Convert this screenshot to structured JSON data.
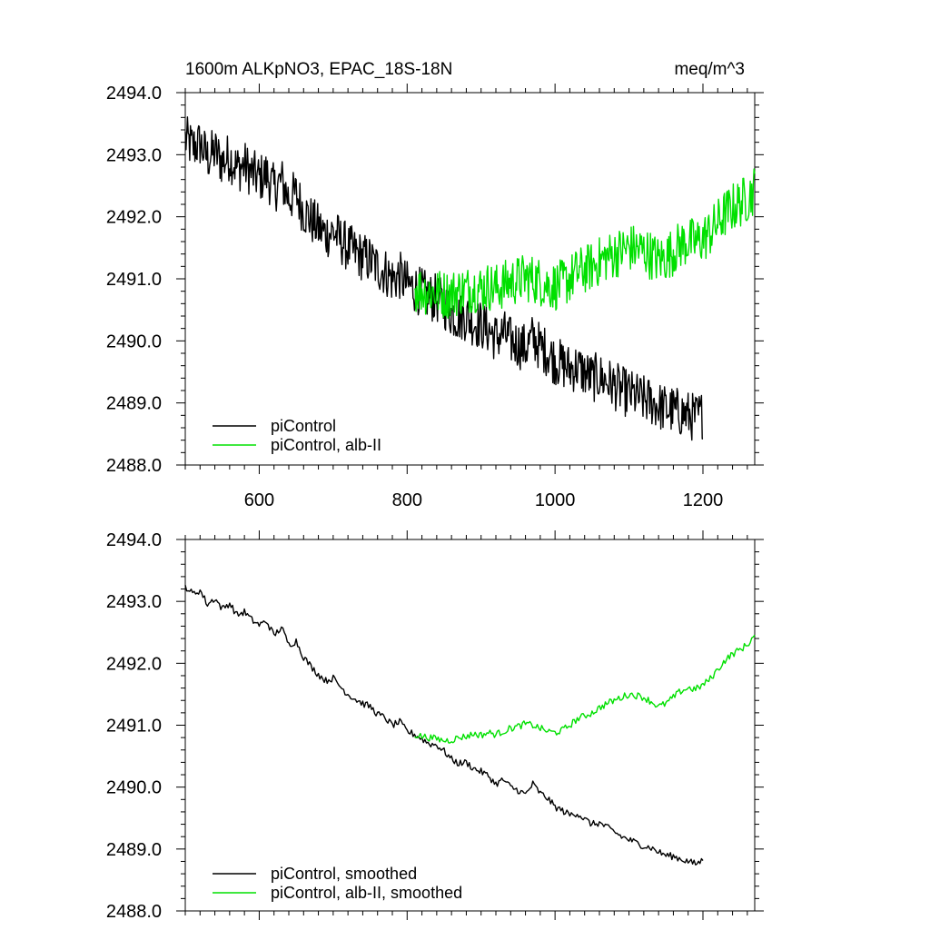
{
  "figure": {
    "title_left": "1600m ALKpNO3, EPAC_18S-18N",
    "title_right": "meq/m^3"
  },
  "chart_data": [
    {
      "type": "line",
      "xlim": [
        500,
        1270
      ],
      "ylim": [
        2488.0,
        2494.0
      ],
      "xticks": [
        600,
        800,
        1000,
        1200
      ],
      "xtick_labels": [
        "600",
        "800",
        "1000",
        "1200"
      ],
      "yticks": [
        2488.0,
        2489.0,
        2490.0,
        2491.0,
        2492.0,
        2493.0,
        2494.0
      ],
      "ytick_labels": [
        "2488.0",
        "2489.0",
        "2490.0",
        "2491.0",
        "2492.0",
        "2493.0",
        "2494.0"
      ],
      "legend_position": "bottom-left",
      "series": [
        {
          "name": "piControl",
          "color": "#000000",
          "x": [
            500,
            510,
            520,
            530,
            540,
            550,
            560,
            570,
            580,
            590,
            600,
            610,
            620,
            630,
            640,
            650,
            660,
            670,
            680,
            690,
            700,
            710,
            720,
            730,
            740,
            750,
            760,
            770,
            780,
            790,
            800,
            810,
            820,
            830,
            840,
            850,
            860,
            870,
            880,
            890,
            900,
            910,
            920,
            930,
            940,
            950,
            960,
            970,
            980,
            990,
            1000,
            1010,
            1020,
            1030,
            1040,
            1050,
            1060,
            1070,
            1080,
            1090,
            1100,
            1110,
            1120,
            1130,
            1140,
            1150,
            1160,
            1170,
            1180,
            1190,
            1200
          ],
          "y": [
            2493.25,
            2493.12,
            2493.18,
            2492.95,
            2493.05,
            2492.88,
            2492.97,
            2492.78,
            2492.83,
            2492.7,
            2492.62,
            2492.68,
            2492.45,
            2492.58,
            2492.3,
            2492.36,
            2492.1,
            2491.95,
            2491.82,
            2491.72,
            2491.76,
            2491.62,
            2491.5,
            2491.42,
            2491.35,
            2491.3,
            2491.18,
            2491.12,
            2491.0,
            2491.05,
            2490.9,
            2490.85,
            2490.78,
            2490.7,
            2490.68,
            2490.58,
            2490.45,
            2490.38,
            2490.4,
            2490.3,
            2490.25,
            2490.18,
            2490.05,
            2490.12,
            2490.0,
            2489.95,
            2489.88,
            2490.05,
            2489.9,
            2489.82,
            2489.68,
            2489.62,
            2489.55,
            2489.58,
            2489.48,
            2489.4,
            2489.42,
            2489.35,
            2489.28,
            2489.2,
            2489.15,
            2489.1,
            2489.05,
            2489.02,
            2488.95,
            2488.9,
            2488.88,
            2488.84,
            2488.8,
            2488.76,
            2488.82
          ],
          "noise_amplitude": 0.4
        },
        {
          "name": "piControl, alb-II",
          "color": "#00e000",
          "x": [
            810,
            820,
            830,
            840,
            850,
            860,
            870,
            880,
            890,
            900,
            910,
            920,
            930,
            940,
            950,
            960,
            970,
            980,
            990,
            1000,
            1010,
            1020,
            1030,
            1040,
            1050,
            1060,
            1070,
            1080,
            1090,
            1100,
            1110,
            1120,
            1130,
            1140,
            1150,
            1160,
            1170,
            1180,
            1190,
            1200,
            1210,
            1220,
            1230,
            1240,
            1250,
            1260,
            1270
          ],
          "y": [
            2490.85,
            2490.82,
            2490.8,
            2490.78,
            2490.75,
            2490.76,
            2490.8,
            2490.82,
            2490.86,
            2490.84,
            2490.88,
            2490.85,
            2490.9,
            2490.95,
            2490.98,
            2491.02,
            2491.0,
            2490.95,
            2490.9,
            2490.88,
            2490.92,
            2491.0,
            2491.1,
            2491.15,
            2491.2,
            2491.28,
            2491.35,
            2491.4,
            2491.45,
            2491.5,
            2491.48,
            2491.45,
            2491.38,
            2491.3,
            2491.35,
            2491.45,
            2491.55,
            2491.6,
            2491.58,
            2491.65,
            2491.75,
            2491.9,
            2492.05,
            2492.15,
            2492.22,
            2492.3,
            2492.45
          ],
          "noise_amplitude": 0.4
        }
      ]
    },
    {
      "type": "line",
      "xlim": [
        500,
        1270
      ],
      "ylim": [
        2488.0,
        2494.0
      ],
      "xticks": [
        600,
        800,
        1000,
        1200
      ],
      "yticks": [
        2488.0,
        2489.0,
        2490.0,
        2491.0,
        2492.0,
        2493.0,
        2494.0
      ],
      "ytick_labels": [
        "2488.0",
        "2489.0",
        "2490.0",
        "2491.0",
        "2492.0",
        "2493.0",
        "2494.0"
      ],
      "legend_position": "bottom-left",
      "series": [
        {
          "name": "piControl, smoothed",
          "color": "#000000",
          "x": [
            500,
            510,
            520,
            530,
            540,
            550,
            560,
            570,
            580,
            590,
            600,
            610,
            620,
            630,
            640,
            650,
            660,
            670,
            680,
            690,
            700,
            710,
            720,
            730,
            740,
            750,
            760,
            770,
            780,
            790,
            800,
            810,
            820,
            830,
            840,
            850,
            860,
            870,
            880,
            890,
            900,
            910,
            920,
            930,
            940,
            950,
            960,
            970,
            980,
            990,
            1000,
            1010,
            1020,
            1030,
            1040,
            1050,
            1060,
            1070,
            1080,
            1090,
            1100,
            1110,
            1120,
            1130,
            1140,
            1150,
            1160,
            1170,
            1180,
            1190,
            1200
          ],
          "y": [
            2493.25,
            2493.12,
            2493.18,
            2492.95,
            2493.05,
            2492.88,
            2492.97,
            2492.78,
            2492.83,
            2492.7,
            2492.62,
            2492.68,
            2492.45,
            2492.58,
            2492.3,
            2492.36,
            2492.1,
            2491.95,
            2491.82,
            2491.72,
            2491.76,
            2491.62,
            2491.5,
            2491.42,
            2491.35,
            2491.3,
            2491.18,
            2491.12,
            2491.0,
            2491.05,
            2490.9,
            2490.85,
            2490.78,
            2490.7,
            2490.68,
            2490.58,
            2490.45,
            2490.38,
            2490.4,
            2490.3,
            2490.25,
            2490.18,
            2490.05,
            2490.12,
            2490.0,
            2489.95,
            2489.88,
            2490.05,
            2489.9,
            2489.82,
            2489.68,
            2489.62,
            2489.55,
            2489.58,
            2489.48,
            2489.4,
            2489.42,
            2489.35,
            2489.28,
            2489.2,
            2489.15,
            2489.1,
            2489.05,
            2489.02,
            2488.95,
            2488.9,
            2488.88,
            2488.84,
            2488.8,
            2488.76,
            2488.82
          ],
          "noise_amplitude": 0.07
        },
        {
          "name": "piControl, alb-II, smoothed",
          "color": "#00e000",
          "x": [
            810,
            820,
            830,
            840,
            850,
            860,
            870,
            880,
            890,
            900,
            910,
            920,
            930,
            940,
            950,
            960,
            970,
            980,
            990,
            1000,
            1010,
            1020,
            1030,
            1040,
            1050,
            1060,
            1070,
            1080,
            1090,
            1100,
            1110,
            1120,
            1130,
            1140,
            1150,
            1160,
            1170,
            1180,
            1190,
            1200,
            1210,
            1220,
            1230,
            1240,
            1250,
            1260,
            1270
          ],
          "y": [
            2490.85,
            2490.82,
            2490.8,
            2490.78,
            2490.75,
            2490.76,
            2490.8,
            2490.82,
            2490.86,
            2490.84,
            2490.88,
            2490.85,
            2490.9,
            2490.95,
            2490.98,
            2491.02,
            2491.0,
            2490.95,
            2490.9,
            2490.88,
            2490.92,
            2491.0,
            2491.1,
            2491.15,
            2491.2,
            2491.28,
            2491.35,
            2491.4,
            2491.45,
            2491.5,
            2491.48,
            2491.45,
            2491.38,
            2491.3,
            2491.35,
            2491.45,
            2491.55,
            2491.6,
            2491.58,
            2491.65,
            2491.75,
            2491.9,
            2492.05,
            2492.15,
            2492.22,
            2492.3,
            2492.45
          ],
          "noise_amplitude": 0.07
        }
      ]
    }
  ]
}
